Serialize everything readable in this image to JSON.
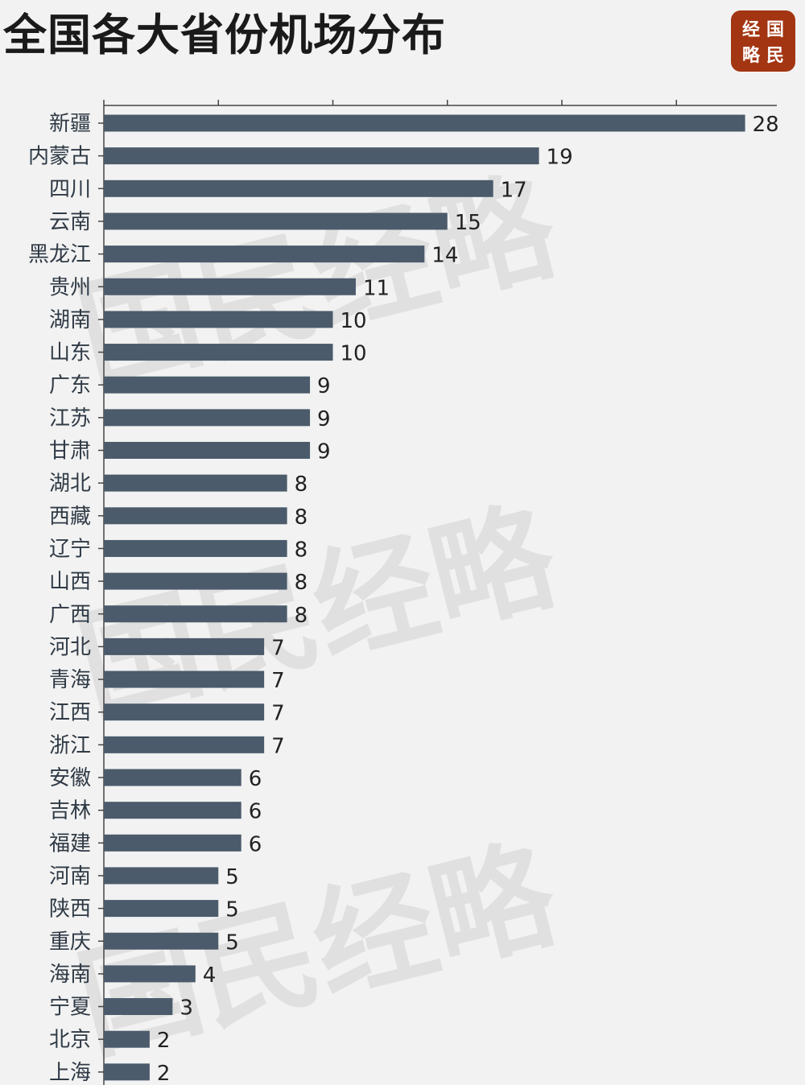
{
  "title": "全国各大省份机场分布",
  "logo": {
    "chars": [
      "经",
      "国",
      "略",
      "民"
    ]
  },
  "watermark": "国民经略",
  "colors": {
    "bar": "#4b5b6b",
    "logo_bg": "#a33512",
    "background": "#f2f2f2"
  },
  "chart_data": {
    "type": "bar",
    "orientation": "horizontal",
    "title": "全国各大省份机场分布",
    "xlabel": "",
    "ylabel": "",
    "xlim": [
      0,
      29
    ],
    "grid": false,
    "categories": [
      "新疆",
      "内蒙古",
      "四川",
      "云南",
      "黑龙江",
      "贵州",
      "湖南",
      "山东",
      "广东",
      "江苏",
      "甘肃",
      "湖北",
      "西藏",
      "辽宁",
      "山西",
      "广西",
      "河北",
      "青海",
      "江西",
      "浙江",
      "安徽",
      "吉林",
      "福建",
      "河南",
      "陕西",
      "重庆",
      "海南",
      "宁夏",
      "北京",
      "上海"
    ],
    "values": [
      28,
      19,
      17,
      15,
      14,
      11,
      10,
      10,
      9,
      9,
      9,
      8,
      8,
      8,
      8,
      8,
      7,
      7,
      7,
      7,
      6,
      6,
      6,
      5,
      5,
      5,
      4,
      3,
      2,
      2
    ]
  }
}
